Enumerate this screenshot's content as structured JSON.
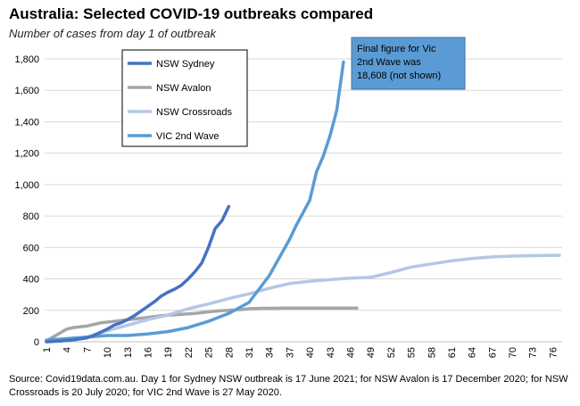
{
  "title": "Australia: Selected COVID-19 outbreaks compared",
  "subtitle": "Number of cases from day 1 of outbreak",
  "source_note": "Source: Covid19data.com.au.  Day 1 for Sydney NSW outbreak is 17 June 2021; for NSW Avalon is 17 December 2020; for NSW Crossroads  is 20 July 2020; for VIC 2nd Wave is 27 May 2020.",
  "annotation": [
    "Final figure for Vic",
    "2nd Wave was",
    "18,608 (not shown)"
  ],
  "chart_data": {
    "type": "line",
    "title": "Australia: Selected COVID-19 outbreaks compared",
    "subtitle": "Number of cases from day 1 of outbreak",
    "xlabel": "",
    "ylabel": "",
    "xlim": [
      1,
      77
    ],
    "ylim": [
      0,
      1800
    ],
    "x_ticks": [
      1,
      4,
      7,
      10,
      13,
      16,
      19,
      22,
      25,
      28,
      31,
      34,
      37,
      40,
      43,
      46,
      49,
      52,
      55,
      58,
      61,
      64,
      67,
      70,
      73,
      76
    ],
    "y_ticks": [
      0,
      200,
      400,
      600,
      800,
      1000,
      1200,
      1400,
      1600,
      1800
    ],
    "y_tick_labels": [
      "0",
      "200",
      "400",
      "600",
      "800",
      "1,000",
      "1,200",
      "1,400",
      "1,600",
      "1,800"
    ],
    "grid": "horizontal",
    "legend_position": "top-center",
    "series": [
      {
        "name": "NSW Sydney",
        "color": "#4472c4",
        "x": [
          1,
          2,
          3,
          4,
          5,
          6,
          7,
          8,
          9,
          10,
          11,
          12,
          13,
          14,
          15,
          16,
          17,
          18,
          19,
          20,
          21,
          22,
          23,
          24,
          25,
          26,
          27,
          28
        ],
        "values": [
          0,
          2,
          4,
          8,
          12,
          18,
          25,
          40,
          60,
          80,
          105,
          120,
          140,
          165,
          195,
          225,
          255,
          290,
          315,
          335,
          360,
          400,
          445,
          500,
          600,
          720,
          770,
          860
        ]
      },
      {
        "name": "NSW Avalon",
        "color": "#a5a5a5",
        "x": [
          1,
          2,
          3,
          4,
          5,
          6,
          7,
          8,
          9,
          10,
          11,
          12,
          13,
          14,
          15,
          16,
          17,
          18,
          19,
          20,
          21,
          22,
          23,
          24,
          25,
          26,
          27,
          28,
          29,
          30,
          31,
          32,
          33,
          34,
          35,
          36,
          37,
          38,
          39,
          40,
          41,
          42,
          43,
          44,
          45,
          46,
          47
        ],
        "values": [
          5,
          30,
          55,
          80,
          90,
          95,
          100,
          110,
          120,
          125,
          130,
          135,
          140,
          145,
          150,
          155,
          160,
          165,
          170,
          172,
          175,
          178,
          180,
          185,
          190,
          195,
          198,
          200,
          203,
          205,
          210,
          212,
          213,
          213,
          213,
          214,
          214,
          214,
          214,
          214,
          214,
          214,
          214,
          214,
          214,
          214,
          214
        ]
      },
      {
        "name": "NSW Crossroads",
        "color": "#b4c7e7",
        "x": [
          1,
          4,
          7,
          10,
          13,
          16,
          19,
          22,
          25,
          28,
          31,
          34,
          37,
          40,
          43,
          46,
          49,
          52,
          55,
          58,
          61,
          64,
          67,
          70,
          73,
          76,
          77
        ],
        "values": [
          0,
          10,
          30,
          70,
          105,
          140,
          170,
          210,
          240,
          275,
          305,
          340,
          370,
          385,
          395,
          405,
          410,
          440,
          475,
          495,
          515,
          530,
          540,
          545,
          548,
          550,
          550
        ]
      },
      {
        "name": "VIC 2nd Wave",
        "color": "#5b9bd5",
        "x": [
          1,
          4,
          7,
          10,
          13,
          16,
          19,
          22,
          25,
          28,
          31,
          34,
          37,
          38,
          40,
          41,
          42,
          43,
          44,
          45
        ],
        "values": [
          10,
          20,
          30,
          40,
          40,
          50,
          65,
          90,
          130,
          180,
          250,
          420,
          650,
          740,
          900,
          1080,
          1180,
          1310,
          1470,
          1780
        ]
      }
    ]
  }
}
